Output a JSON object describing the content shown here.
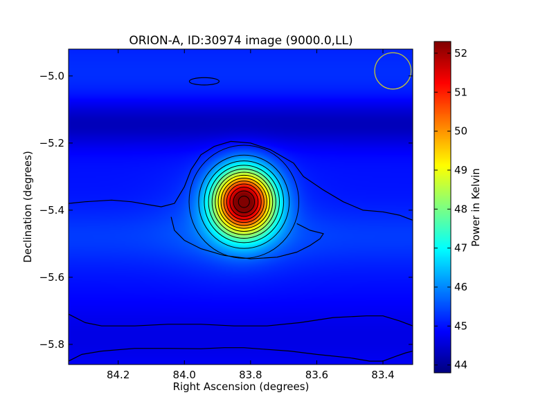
{
  "chart_data": {
    "type": "heatmap",
    "title": "ORION-A, ID:30974 image (9000.0,LL)",
    "xlabel": "Right Ascension (degrees)",
    "ylabel": "Declination (degrees)",
    "xlim": [
      84.35,
      83.31
    ],
    "ylim": [
      -5.86,
      -4.92
    ],
    "x_ticks": [
      84.2,
      84.0,
      83.8,
      83.6,
      83.4
    ],
    "x_tick_labels": [
      "84.2",
      "84.0",
      "83.8",
      "83.6",
      "83.4"
    ],
    "y_ticks": [
      -5.0,
      -5.2,
      -5.4,
      -5.6,
      -5.8
    ],
    "y_tick_labels": [
      "−5.0",
      "−5.2",
      "−5.4",
      "−5.6",
      "−5.8"
    ],
    "colorbar": {
      "label": "Power in Kelvin",
      "range": [
        43.8,
        52.3
      ],
      "ticks": [
        44,
        45,
        46,
        47,
        48,
        49,
        50,
        51,
        52
      ],
      "tick_labels": [
        "44",
        "45",
        "46",
        "47",
        "48",
        "49",
        "50",
        "51",
        "52"
      ],
      "colormap": "jet"
    },
    "background_level": 45.0,
    "peak": {
      "ra": 83.82,
      "dec": -5.375,
      "value": 52.3
    },
    "source_fwhm_deg": {
      "ra": 0.15,
      "dec": 0.16
    },
    "contour_levels": [
      45.3,
      45.8,
      46.3,
      46.8,
      47.3,
      47.8,
      48.3,
      48.8,
      49.3,
      49.8,
      50.3,
      50.8,
      51.3,
      51.8
    ],
    "cold_band": {
      "dec": -5.14,
      "value": 44.1
    },
    "grid": false,
    "beam_marker": {
      "ra": 83.37,
      "dec": -4.985,
      "diameter_deg": 0.11,
      "color": "#c8c832"
    },
    "outer_contours": [
      {
        "name": "western-ridge",
        "points": [
          [
            84.35,
            -5.38
          ],
          [
            84.3,
            -5.375
          ],
          [
            84.22,
            -5.37
          ],
          [
            84.16,
            -5.375
          ],
          [
            84.1,
            -5.385
          ],
          [
            84.07,
            -5.39
          ],
          [
            84.03,
            -5.38
          ],
          [
            84.0,
            -5.33
          ],
          [
            83.98,
            -5.28
          ],
          [
            83.95,
            -5.235
          ],
          [
            83.91,
            -5.21
          ],
          [
            83.86,
            -5.195
          ],
          [
            83.8,
            -5.2
          ],
          [
            83.74,
            -5.22
          ],
          [
            83.67,
            -5.26
          ],
          [
            83.64,
            -5.3
          ],
          [
            83.58,
            -5.34
          ],
          [
            83.52,
            -5.375
          ],
          [
            83.46,
            -5.4
          ],
          [
            83.4,
            -5.405
          ],
          [
            83.35,
            -5.415
          ],
          [
            83.31,
            -5.43
          ]
        ]
      },
      {
        "name": "central-lobe",
        "points": [
          [
            84.04,
            -5.42
          ],
          [
            84.03,
            -5.46
          ],
          [
            84.0,
            -5.49
          ],
          [
            83.95,
            -5.515
          ],
          [
            83.88,
            -5.535
          ],
          [
            83.8,
            -5.545
          ],
          [
            83.72,
            -5.54
          ],
          [
            83.66,
            -5.525
          ],
          [
            83.62,
            -5.505
          ],
          [
            83.59,
            -5.485
          ],
          [
            83.58,
            -5.47
          ],
          [
            83.62,
            -5.46
          ],
          [
            83.66,
            -5.44
          ]
        ]
      },
      {
        "name": "southern-band-upper",
        "points": [
          [
            84.35,
            -5.71
          ],
          [
            84.3,
            -5.735
          ],
          [
            84.25,
            -5.745
          ],
          [
            84.15,
            -5.745
          ],
          [
            84.05,
            -5.74
          ],
          [
            83.95,
            -5.74
          ],
          [
            83.85,
            -5.745
          ],
          [
            83.75,
            -5.745
          ],
          [
            83.65,
            -5.735
          ],
          [
            83.55,
            -5.72
          ],
          [
            83.45,
            -5.715
          ],
          [
            83.4,
            -5.715
          ],
          [
            83.35,
            -5.73
          ],
          [
            83.31,
            -5.745
          ]
        ]
      },
      {
        "name": "southern-band-lower",
        "points": [
          [
            84.35,
            -5.85
          ],
          [
            84.31,
            -5.83
          ],
          [
            84.25,
            -5.82
          ],
          [
            84.15,
            -5.812
          ],
          [
            84.05,
            -5.812
          ],
          [
            83.95,
            -5.813
          ],
          [
            83.88,
            -5.81
          ],
          [
            83.82,
            -5.81
          ],
          [
            83.75,
            -5.815
          ],
          [
            83.68,
            -5.82
          ],
          [
            83.6,
            -5.83
          ],
          [
            83.5,
            -5.84
          ],
          [
            83.44,
            -5.85
          ],
          [
            83.4,
            -5.85
          ],
          [
            83.36,
            -5.835
          ],
          [
            83.33,
            -5.825
          ],
          [
            83.31,
            -5.82
          ]
        ]
      },
      {
        "name": "northern-blob",
        "ellipse": {
          "ra": 83.94,
          "dec": -5.016,
          "rx_deg": 0.045,
          "ry_deg": 0.011
        }
      }
    ]
  }
}
